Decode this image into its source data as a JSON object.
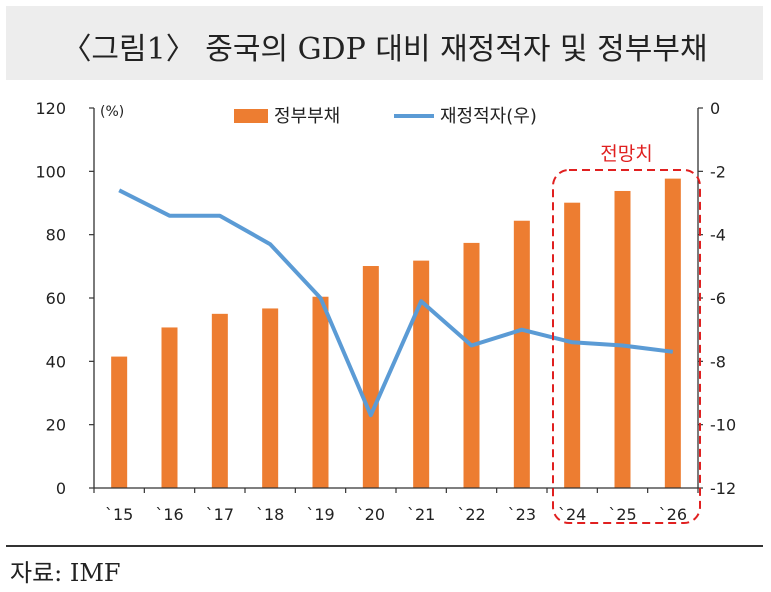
{
  "header": {
    "title": "〈그림1〉 중국의 GDP 대비 재정적자 및 정부부채"
  },
  "footer": {
    "source": "자료: IMF"
  },
  "colors": {
    "bar": "#ed7d31",
    "line": "#5b9bd5",
    "forecast": "#e02020",
    "axis": "#333333"
  },
  "chart_data": {
    "type": "bar",
    "categories": [
      "`15",
      "`16",
      "`17",
      "`18",
      "`19",
      "`20",
      "`21",
      "`22",
      "`23",
      "`24",
      "`25",
      "`26"
    ],
    "series": [
      {
        "name": "정부부채",
        "type": "bar",
        "axis": "left",
        "values": [
          41.5,
          50.7,
          55.0,
          56.7,
          60.4,
          70.1,
          71.8,
          77.4,
          84.4,
          90.1,
          93.8,
          97.7
        ]
      },
      {
        "name": "재정적자(우)",
        "type": "line",
        "axis": "right",
        "values": [
          -2.6,
          -3.4,
          -3.4,
          -4.3,
          -6.0,
          -9.7,
          -6.1,
          -7.5,
          -7.0,
          -7.4,
          -7.5,
          -7.7
        ]
      }
    ],
    "y_left": {
      "unit": "(%)",
      "min": 0,
      "max": 120,
      "ticks": [
        0,
        20,
        40,
        60,
        80,
        100,
        120
      ]
    },
    "y_right": {
      "min": -12,
      "max": 0,
      "ticks": [
        0,
        -2,
        -4,
        -6,
        -8,
        -10,
        -12
      ]
    },
    "forecast": {
      "label": "전망치",
      "categories": [
        "`24",
        "`25",
        "`26"
      ]
    },
    "legend": "top-center",
    "grid": false
  }
}
